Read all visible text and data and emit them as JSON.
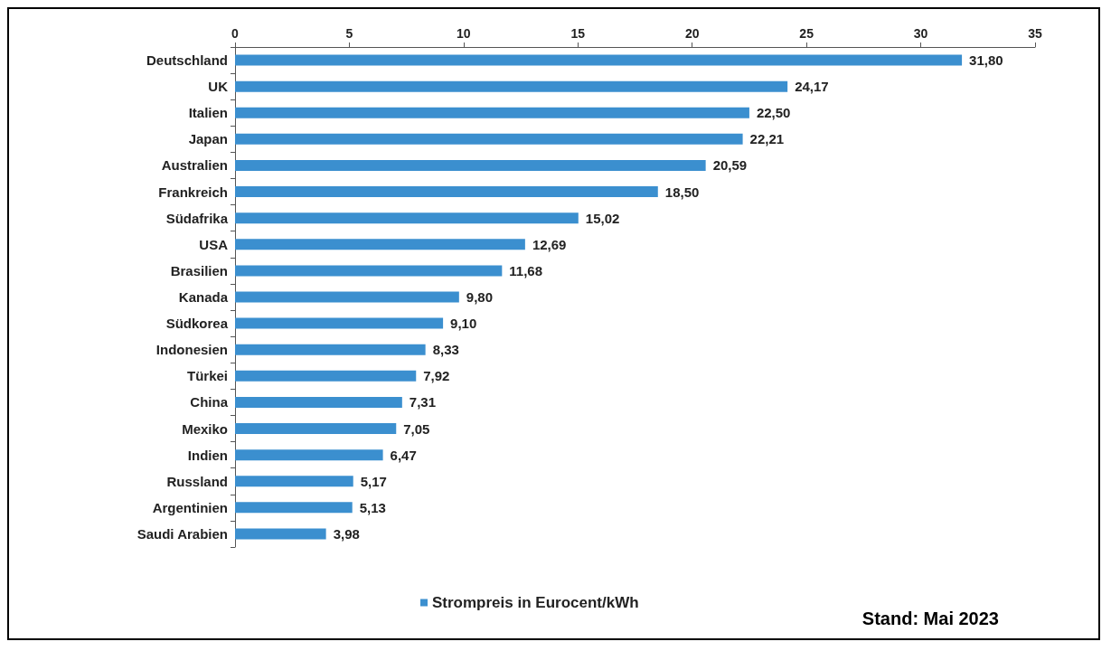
{
  "chart_data": {
    "type": "bar",
    "orientation": "horizontal",
    "categories": [
      "Deutschland",
      "UK",
      "Italien",
      "Japan",
      "Australien",
      "Frankreich",
      "Südafrika",
      "USA",
      "Brasilien",
      "Kanada",
      "Südkorea",
      "Indonesien",
      "Türkei",
      "China",
      "Mexiko",
      "Indien",
      "Russland",
      "Argentinien",
      "Saudi Arabien"
    ],
    "series": [
      {
        "name": "Strompreis in Eurocent/kWh",
        "color": "#3b8fcf",
        "values": [
          31.8,
          24.17,
          22.5,
          22.21,
          20.59,
          18.5,
          15.02,
          12.69,
          11.68,
          9.8,
          9.1,
          8.33,
          7.92,
          7.31,
          7.05,
          6.47,
          5.17,
          5.13,
          3.98
        ],
        "value_labels": [
          "31,80",
          "24,17",
          "22,50",
          "22,21",
          "20,59",
          "18,50",
          "15,02",
          "12,69",
          "11,68",
          "9,80",
          "9,10",
          "8,33",
          "7,92",
          "7,31",
          "7,05",
          "6,47",
          "5,17",
          "5,13",
          "3,98"
        ]
      }
    ],
    "xlim": [
      0,
      35
    ],
    "xticks": [
      0,
      5,
      10,
      15,
      20,
      25,
      30,
      35
    ],
    "grid": false,
    "legend": "bottom",
    "annotations": [
      "Stand: Mai 2023"
    ]
  }
}
